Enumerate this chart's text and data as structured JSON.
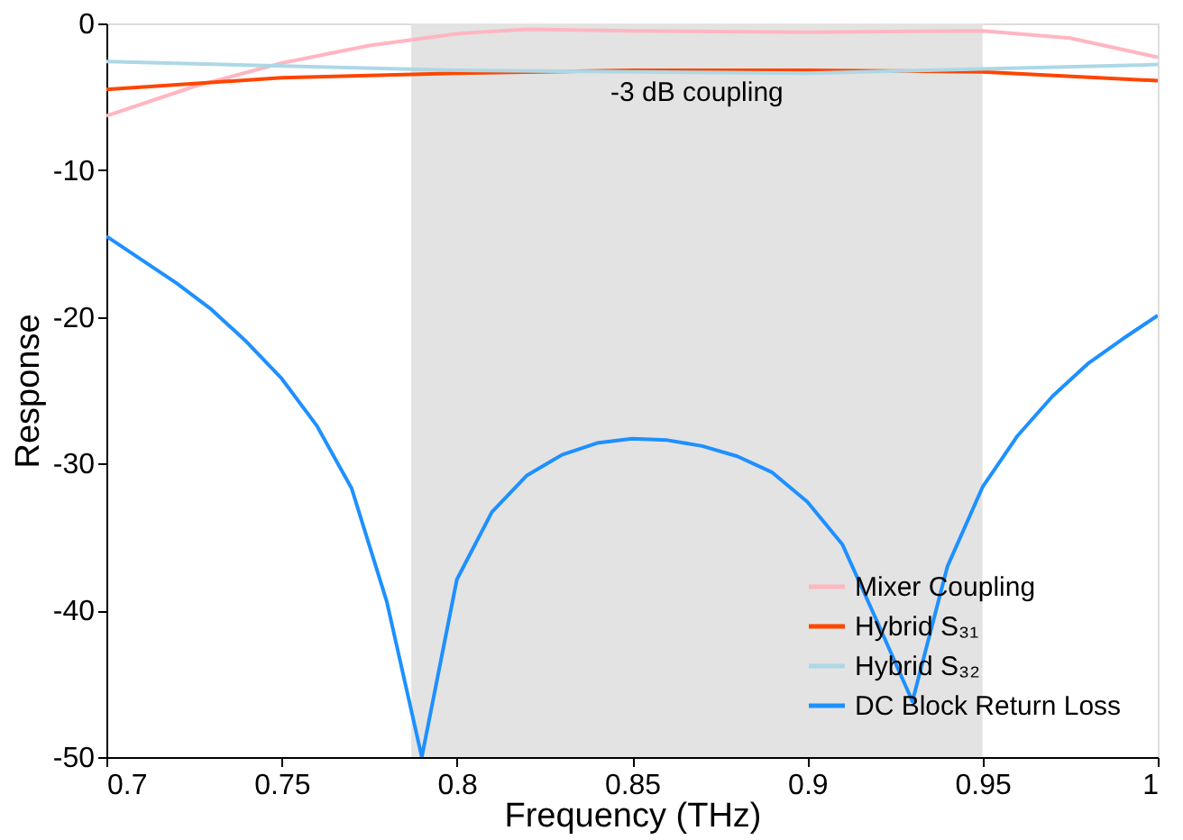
{
  "chart_data": {
    "type": "line",
    "xlabel": "Frequency (THz)",
    "ylabel": "Response",
    "xlim": [
      0.7,
      1.0
    ],
    "xticks": [
      0.7,
      0.75,
      0.8,
      0.85,
      0.9,
      0.95,
      1
    ],
    "ylim": [
      -50,
      0
    ],
    "yticks": [
      -50,
      -40,
      -30,
      -20,
      -10,
      0
    ],
    "grid": false,
    "legend": "bottom right",
    "line_style": "solid",
    "marker": "none",
    "bands": [
      {
        "axis": "x",
        "from": 0.787,
        "to": 0.95,
        "label": "-3 dB coupling",
        "color": "#e3e3e3"
      }
    ],
    "series": [
      {
        "name": "Mixer Coupling",
        "color": "#ffb6c1",
        "x": [
          0.7,
          0.725,
          0.75,
          0.775,
          0.8,
          0.82,
          0.85,
          0.9,
          0.95,
          0.975,
          1.0
        ],
        "values": [
          -6.3,
          -4.3,
          -2.7,
          -1.5,
          -0.7,
          -0.4,
          -0.5,
          -0.6,
          -0.5,
          -1.0,
          -2.3
        ]
      },
      {
        "name": "Hybrid S₃₁",
        "color": "#ff4500",
        "x": [
          0.7,
          0.75,
          0.8,
          0.85,
          0.9,
          0.95,
          1.0
        ],
        "values": [
          -4.5,
          -3.7,
          -3.4,
          -3.2,
          -3.2,
          -3.3,
          -3.9
        ]
      },
      {
        "name": "Hybrid S₃₂",
        "color": "#add8e6",
        "x": [
          0.7,
          0.8,
          0.9,
          1.0
        ],
        "values": [
          -2.6,
          -3.2,
          -3.4,
          -2.8
        ]
      },
      {
        "name": "DC Block Return Loss",
        "color": "#1e90ff",
        "x": [
          0.7,
          0.71,
          0.72,
          0.73,
          0.74,
          0.75,
          0.76,
          0.77,
          0.78,
          0.79,
          0.8,
          0.81,
          0.82,
          0.83,
          0.84,
          0.85,
          0.86,
          0.87,
          0.88,
          0.89,
          0.9,
          0.91,
          0.92,
          0.93,
          0.94,
          0.95,
          0.96,
          0.97,
          0.98,
          0.99,
          1.0
        ],
        "values": [
          -14.5,
          -16.1,
          -17.7,
          -19.5,
          -21.7,
          -24.2,
          -27.4,
          -31.7,
          -39.4,
          -50,
          -37.9,
          -33.3,
          -30.8,
          -29.4,
          -28.6,
          -28.3,
          -28.4,
          -28.8,
          -29.5,
          -30.6,
          -32.6,
          -35.5,
          -40.8,
          -46.2,
          -37.0,
          -31.6,
          -28.1,
          -25.4,
          -23.2,
          -21.5,
          -19.9
        ]
      }
    ]
  }
}
